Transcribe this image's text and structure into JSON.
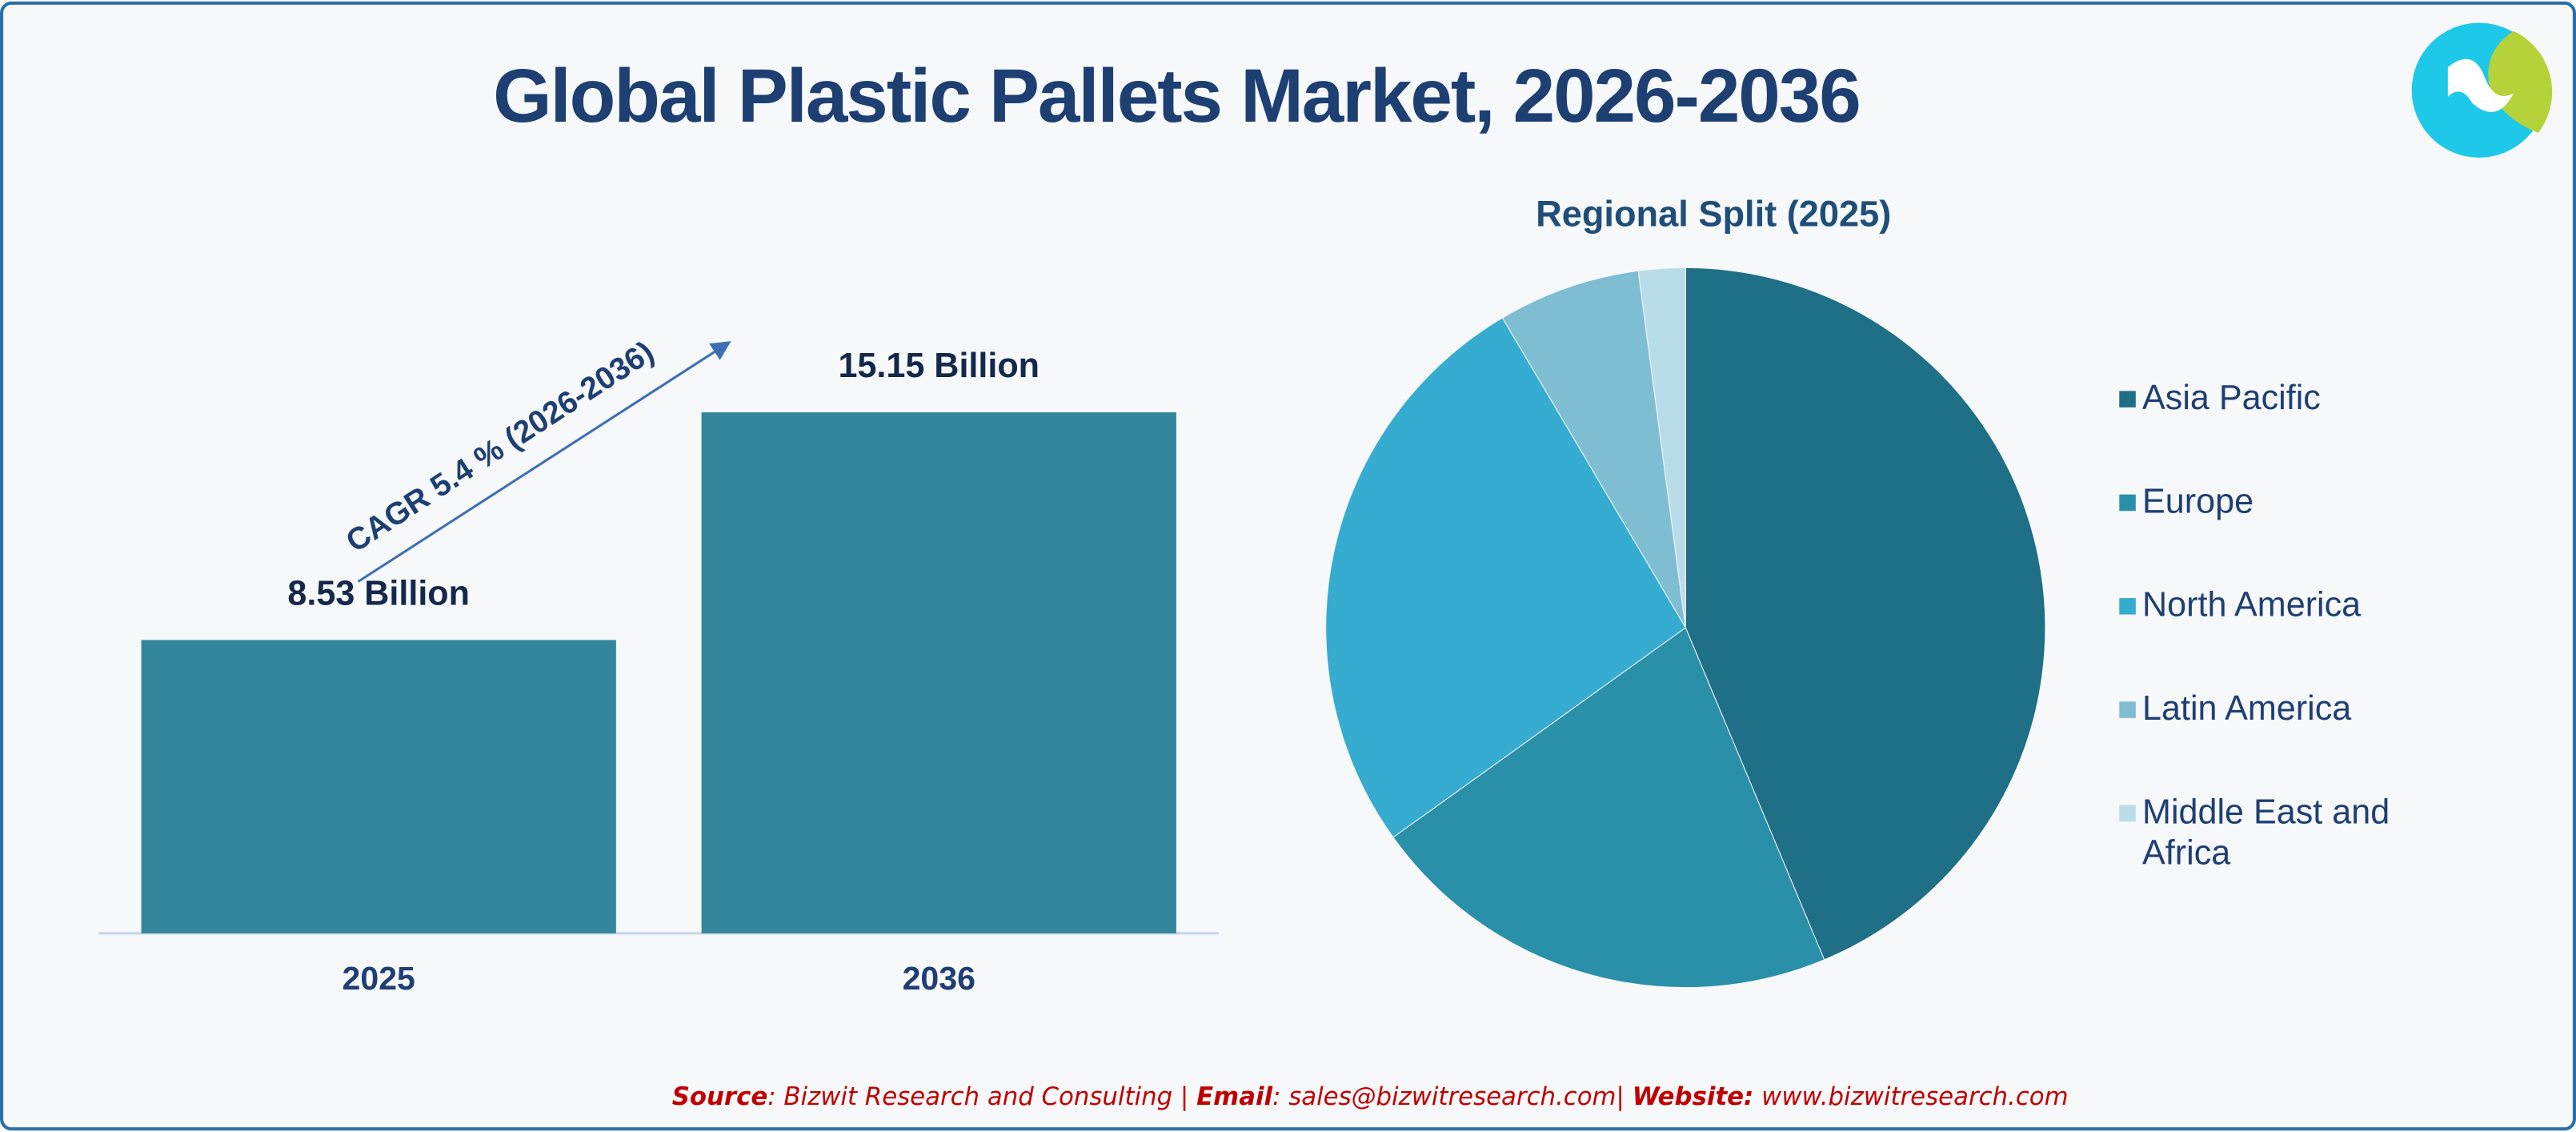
{
  "title": "Global Plastic Pallets Market, 2026-2036",
  "chart_data": [
    {
      "type": "bar",
      "categories": [
        "2025",
        "2036"
      ],
      "values": [
        8.53,
        15.15
      ],
      "value_labels": [
        "8.53 Billion",
        "15.15 Billion"
      ],
      "color": "#33869b",
      "annotation": "CAGR 5.4 % (2026-2036)"
    },
    {
      "type": "pie",
      "title": "Regional Split (2025)",
      "categories": [
        "Asia Pacific",
        "Europe",
        "North America",
        "Latin America",
        "Middle East and Africa"
      ],
      "values": [
        43.7,
        21.4,
        26.4,
        6.4,
        2.1
      ],
      "colors": [
        "#1f6f86",
        "#2a8fa8",
        "#35acd0",
        "#7fbdd3",
        "#b9dde8"
      ],
      "legend": "right"
    }
  ],
  "footer": [
    "Source",
    ": Bizwit Research and Consulting | ",
    "Email",
    ": sales@bizwitresearch.com| ",
    "Website:",
    " www.bizwitresearch.com"
  ]
}
